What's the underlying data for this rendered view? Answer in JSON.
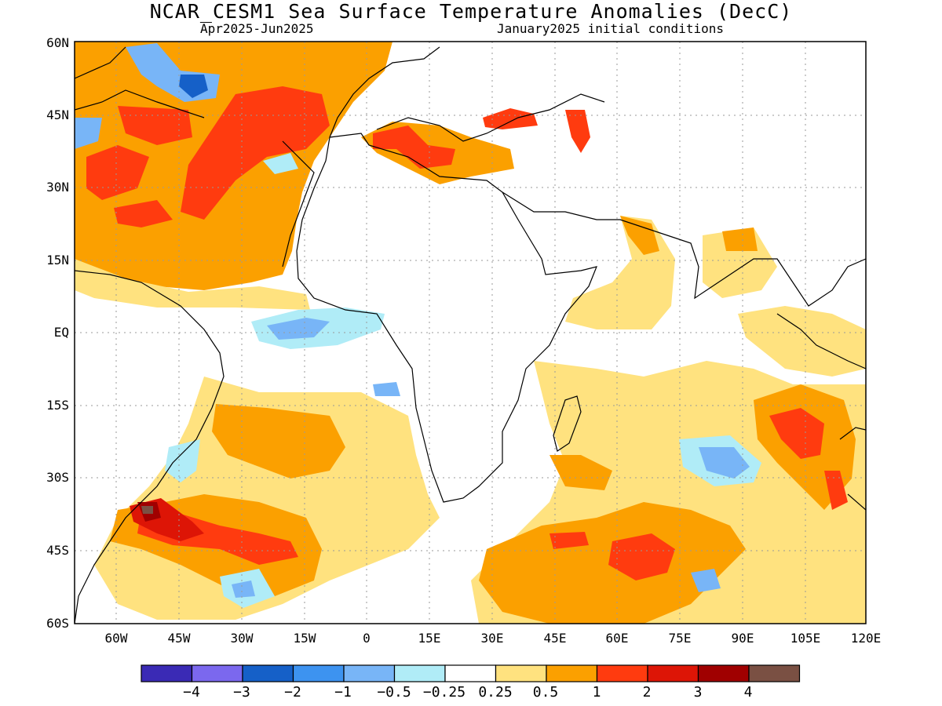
{
  "header": {
    "title": "NCAR_CESM1 Sea Surface Temperature Anomalies (DecC)",
    "period": "Apr2025-Jun2025",
    "init": "January2025 initial conditions"
  },
  "axes": {
    "lat_labels": [
      "60N",
      "45N",
      "30N",
      "15N",
      "EQ",
      "15S",
      "30S",
      "45S",
      "60S"
    ],
    "lon_labels": [
      "60W",
      "45W",
      "30W",
      "15W",
      "0",
      "15E",
      "30E",
      "45E",
      "60E",
      "75E",
      "90E",
      "105E",
      "120E"
    ]
  },
  "colorbar": {
    "labels": [
      "−4",
      "−3",
      "−2",
      "−1",
      "−0.5",
      "−0.25",
      "0.25",
      "0.5",
      "1",
      "2",
      "3",
      "4"
    ],
    "colors": [
      "#3a2ab5",
      "#7b68ee",
      "#1560c8",
      "#3d93f0",
      "#78b5f7",
      "#b0ecf7",
      "#ffffff",
      "#ffe27f",
      "#fba000",
      "#ff3b0f",
      "#dd1506",
      "#a00000",
      "#7a5043"
    ]
  },
  "colors": {
    "land_outline": "#000000",
    "grid": "#9a9a9a",
    "frame": "#000000"
  }
}
